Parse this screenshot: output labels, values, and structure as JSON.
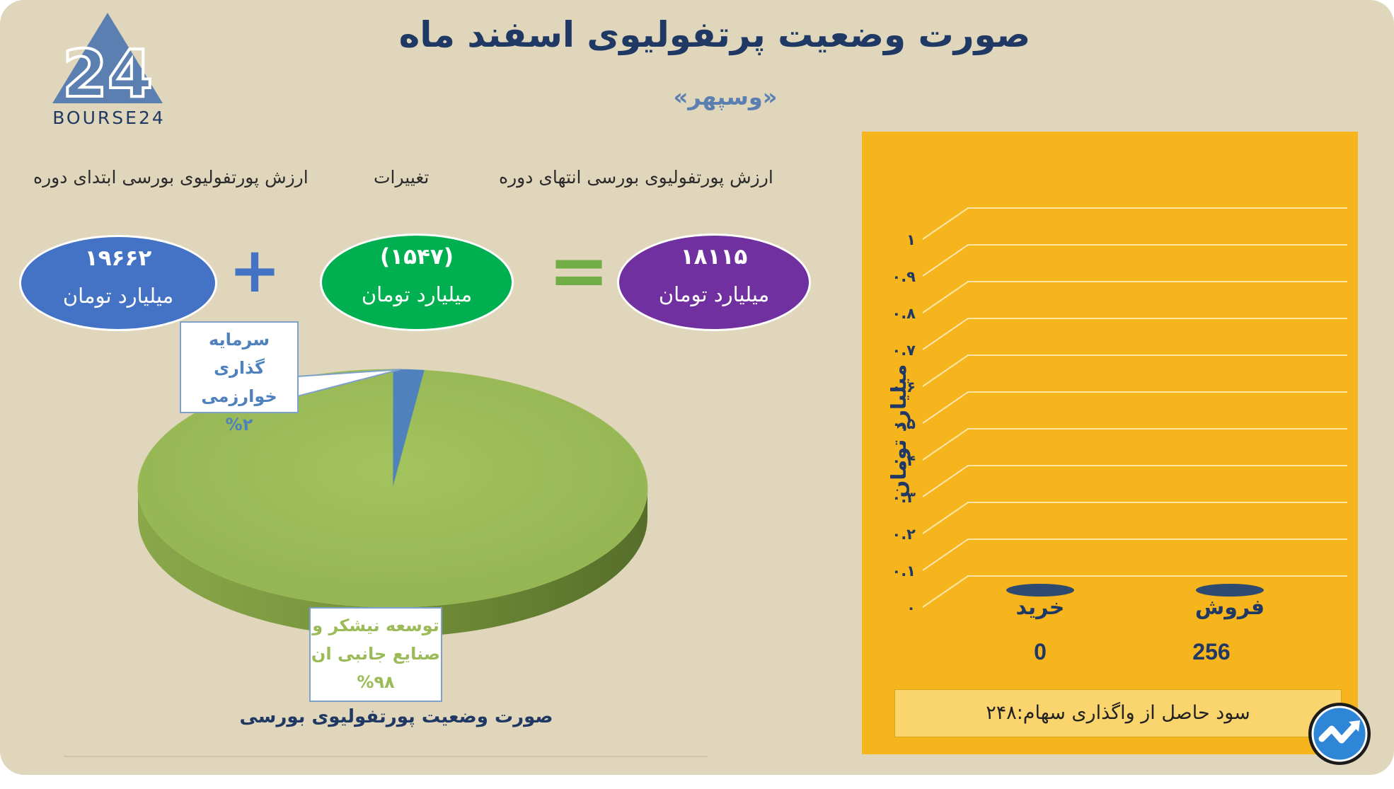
{
  "header": {
    "title": "صورت وضعیت پرتفولیوی اسفند ماه",
    "subtitle": "«وسپهر»",
    "logo_text": "BOURSE24",
    "logo_number": "24"
  },
  "equation": {
    "start_label": "ارزش پورتفولیوی بورسی ابتدای دوره",
    "change_label": "تغییرات",
    "end_label": "ارزش پورتفولیوی بورسی انتهای دوره",
    "start_value": "۱۹۶۶۲",
    "change_value": "(۱۵۴۷)",
    "end_value": "۱۸۱۱۵",
    "unit": "میلیارد تومان",
    "plus_sign": "+",
    "equals_sign": "=",
    "colors": {
      "start": "#4472c4",
      "change": "#00b050",
      "end": "#7030a0",
      "plus": "#4472c4",
      "equals": "#70ad47"
    }
  },
  "chart_data": [
    {
      "type": "pie",
      "title": "صورت وضعیت پورتفولیوی بورسی",
      "slices": [
        {
          "label": "توسعه نیشکر و صنایع جانبی ان",
          "label_line1": "توسعه نیشکر و",
          "label_line2": "صنایع جانبی ان",
          "pct_text": "%۹۸",
          "value": 98,
          "color": "#9bbb59"
        },
        {
          "label": "سرمایه گذاری خوارزمی",
          "label_line1": "سرمایه گذاری",
          "label_line2": "خوارزمی",
          "pct_text": "%۲",
          "value": 2,
          "color": "#4f81bd"
        }
      ]
    },
    {
      "type": "bar",
      "categories": [
        "خرید",
        "فروش"
      ],
      "values": [
        0,
        256
      ],
      "value_labels": [
        "0",
        "256"
      ],
      "ylabel": "میلیارد تومان",
      "ylim": [
        0,
        1
      ],
      "yticks": [
        0,
        0.1,
        0.2,
        0.3,
        0.4,
        0.5,
        0.6,
        0.7,
        0.8,
        0.9,
        1
      ],
      "ytick_labels": [
        "۰",
        "۰.۱",
        "۰.۲",
        "۰.۳",
        "۰.۴",
        "۰.۵",
        "۰.۶",
        "۰.۷",
        "۰.۸",
        "۰.۹",
        "۱"
      ],
      "grid": true,
      "bar_color": "#2e4a70",
      "background": "#f6b41d"
    }
  ],
  "profit": {
    "text": "سود حاصل از واگذاری سهام:۲۴۸"
  }
}
